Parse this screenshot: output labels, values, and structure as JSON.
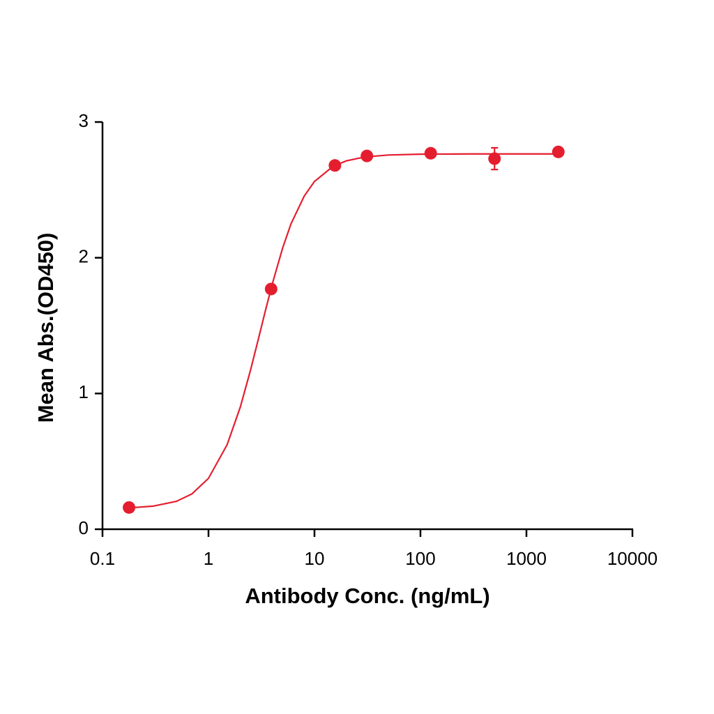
{
  "chart_data": {
    "type": "scatter",
    "xlabel": "Antibody Conc. (ng/mL)",
    "ylabel": "Mean Abs.(OD450)",
    "log_x": true,
    "xlim": [
      0.1,
      10000
    ],
    "xticks": [
      0.1,
      1,
      10,
      100,
      1000,
      10000
    ],
    "ylim": [
      0,
      3
    ],
    "yticks": [
      0,
      1,
      2,
      3
    ],
    "color": "#e41e2f",
    "series": [
      {
        "color": "#e41e2f",
        "x": [
          0.178,
          3.9,
          15.6,
          31.25,
          125,
          500,
          2000
        ],
        "values": [
          0.16,
          1.77,
          2.68,
          2.75,
          2.77,
          2.73,
          2.78
        ],
        "errors": [
          0.01,
          0.01,
          0.01,
          0.01,
          0.01,
          0.08,
          0.01
        ]
      }
    ],
    "curve": {
      "x": [
        0.178,
        0.3,
        0.5,
        0.7,
        1,
        1.5,
        2,
        2.5,
        3,
        3.5,
        4,
        5,
        6,
        8,
        10,
        15,
        20,
        30,
        50,
        100,
        300,
        1000,
        2000
      ],
      "values": [
        0.157,
        0.17,
        0.206,
        0.261,
        0.375,
        0.623,
        0.902,
        1.176,
        1.421,
        1.632,
        1.807,
        2.07,
        2.249,
        2.454,
        2.562,
        2.674,
        2.714,
        2.743,
        2.757,
        2.763,
        2.765,
        2.765,
        2.765
      ]
    }
  }
}
